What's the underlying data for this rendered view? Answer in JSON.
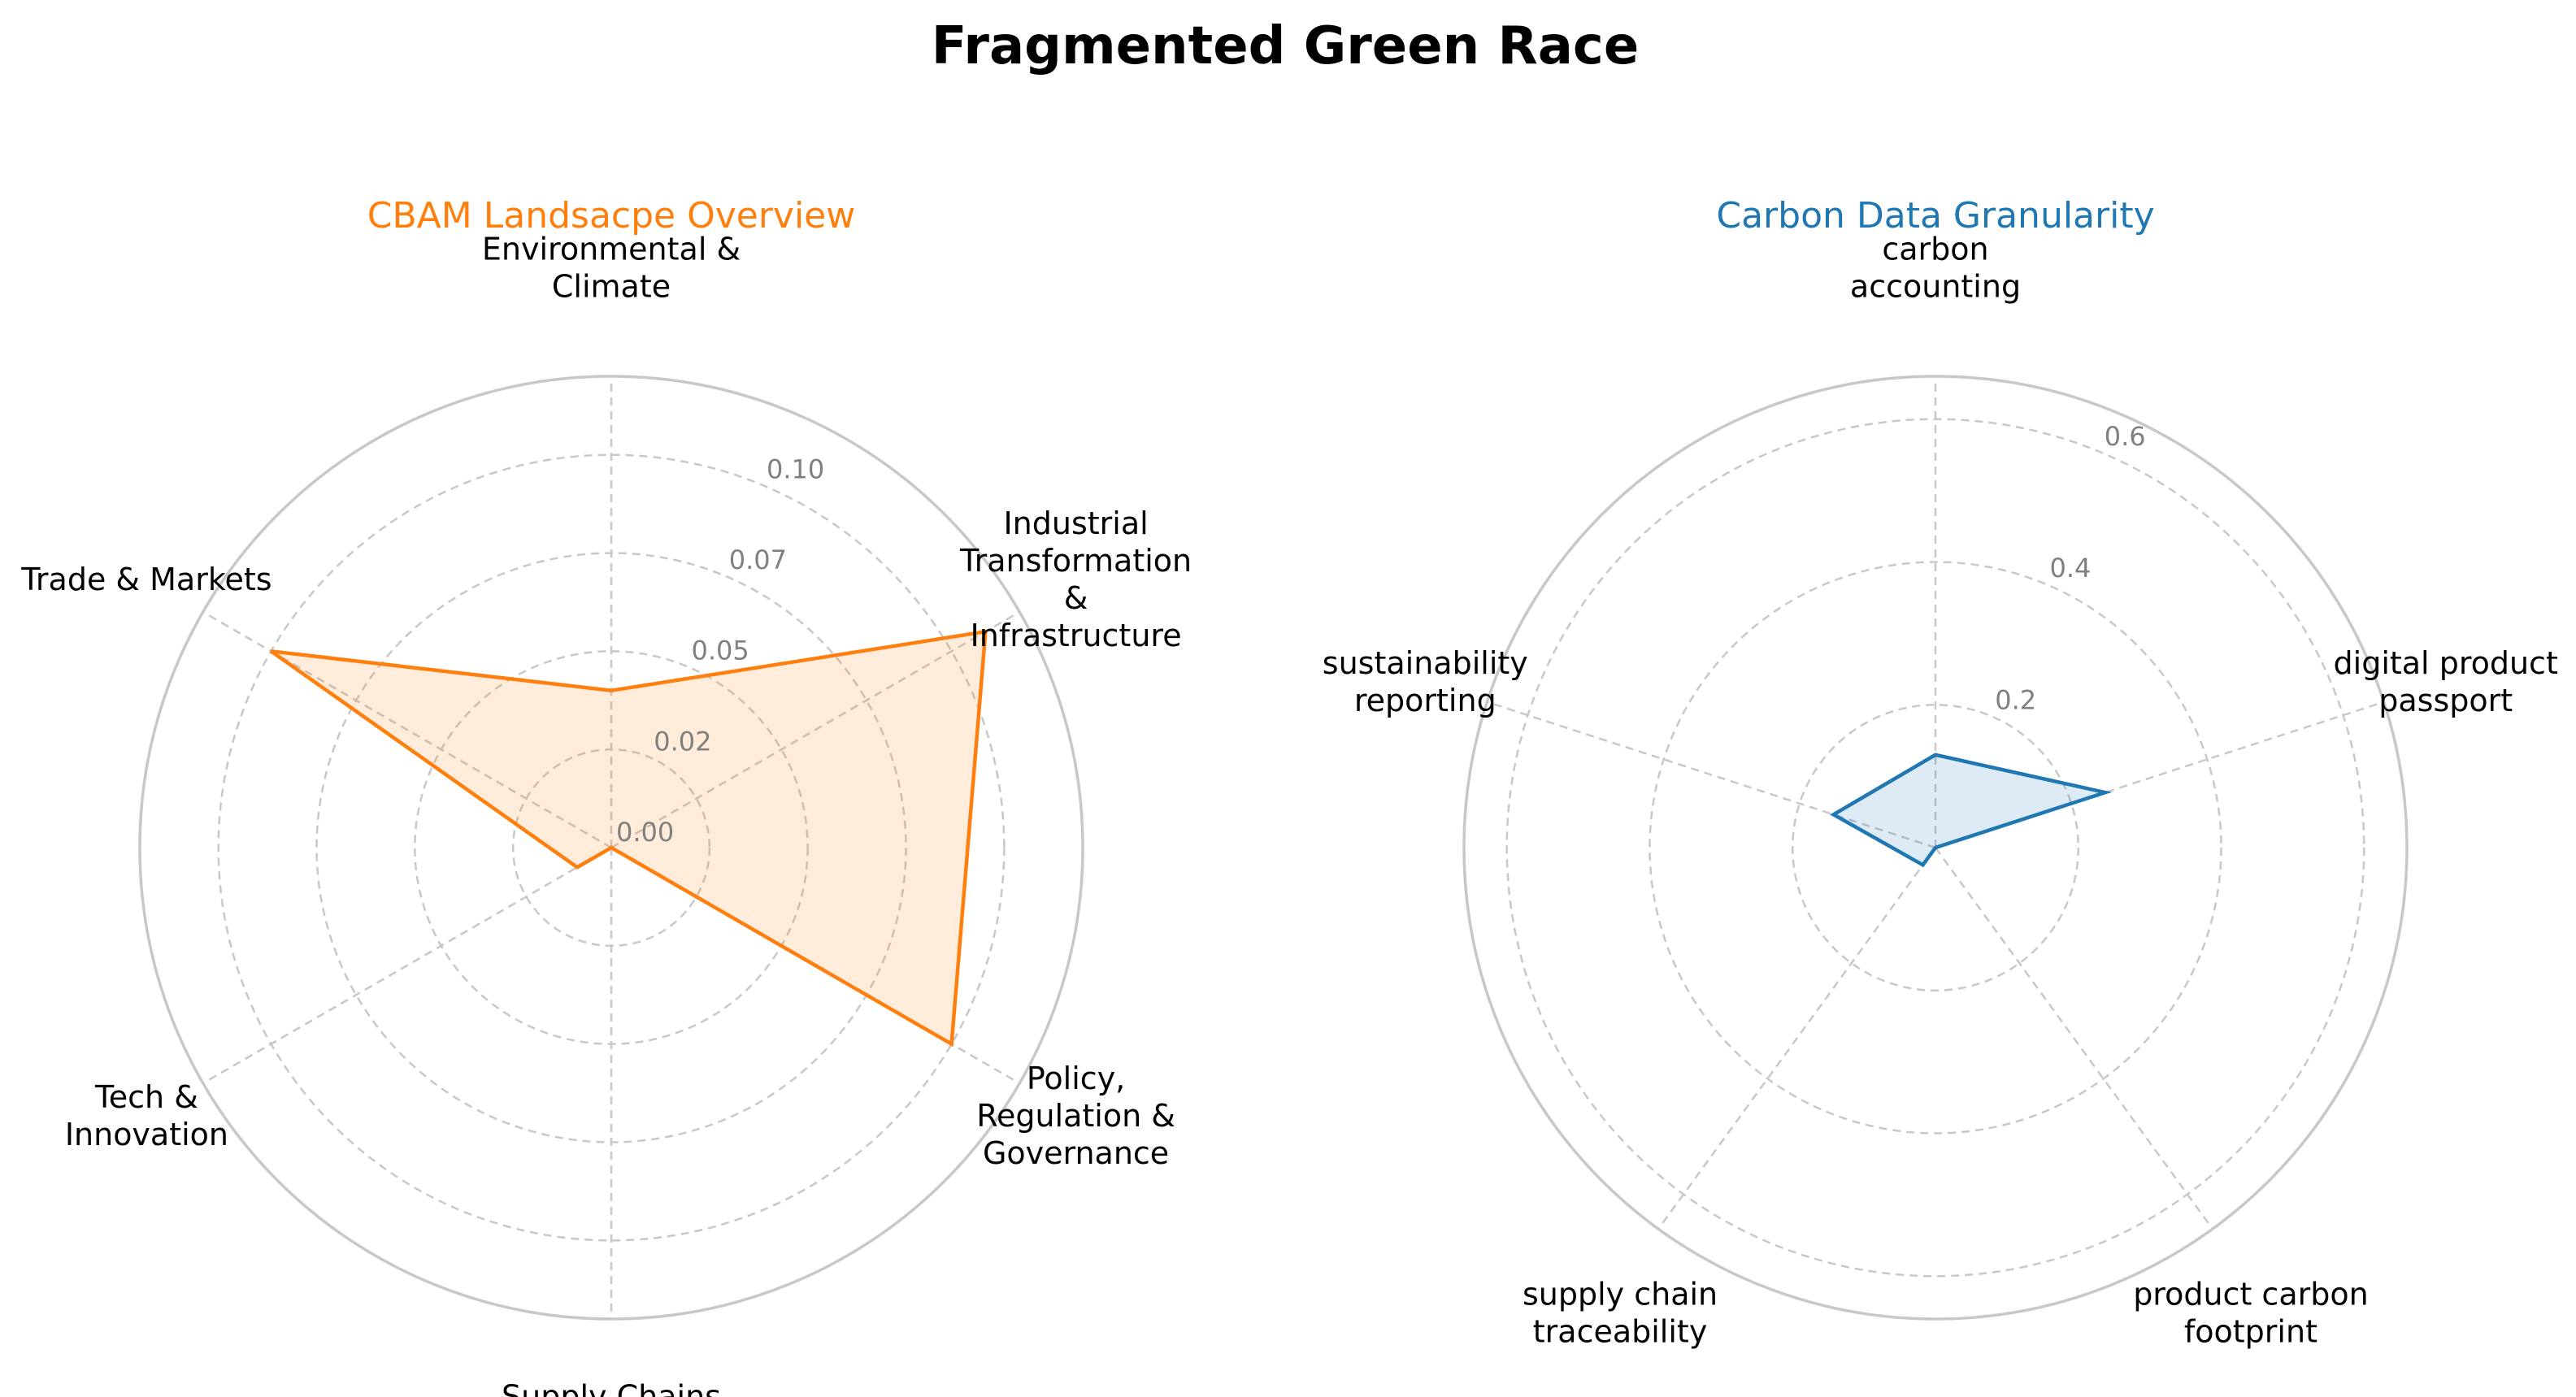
{
  "figure": {
    "title": "Fragmented Green Race"
  },
  "chart_data": [
    {
      "type": "radar",
      "title": "CBAM Landsacpe Overview",
      "title_color": "#ff7f0e",
      "line_color": "#ff7f0e",
      "fill_color": "#ff7f0e",
      "categories": [
        "Environmental & Climate",
        "Industrial Transformation & Infrastructure",
        "Policy, Regulation & Governance",
        "Supply Chains",
        "Tech & Innovation",
        "Trade & Markets"
      ],
      "category_lines": [
        [
          "Environmental &",
          "Climate"
        ],
        [
          "Industrial",
          "Transformation",
          "&",
          "Infrastructure"
        ],
        [
          "Policy,",
          "Regulation &",
          "Governance"
        ],
        [
          "Supply Chains"
        ],
        [
          "Tech &",
          "Innovation"
        ],
        [
          "Trade & Markets"
        ]
      ],
      "values": [
        0.04,
        0.11,
        0.1,
        0.0,
        0.01,
        0.1
      ],
      "rmax": 0.12,
      "ticks": [
        0.0,
        0.025,
        0.05,
        0.075,
        0.1
      ],
      "tick_labels": [
        "0.00",
        "0.02",
        "0.05",
        "0.07",
        "0.10"
      ],
      "grid": true
    },
    {
      "type": "radar",
      "title": "Carbon Data Granularity",
      "title_color": "#1f77b4",
      "line_color": "#1f77b4",
      "fill_color": "#1f77b4",
      "categories": [
        "carbon accounting",
        "digital product passport",
        "product carbon footprint",
        "supply chain traceability",
        "sustainability reporting"
      ],
      "category_lines": [
        [
          "carbon",
          "accounting"
        ],
        [
          "digital product",
          "passport"
        ],
        [
          "product carbon",
          "footprint"
        ],
        [
          "supply chain",
          "traceability"
        ],
        [
          "sustainability",
          "reporting"
        ]
      ],
      "values": [
        0.13,
        0.25,
        0.0,
        0.03,
        0.15
      ],
      "rmax": 0.66,
      "ticks": [
        0.2,
        0.4,
        0.6
      ],
      "tick_labels": [
        "0.2",
        "0.4",
        "0.6"
      ],
      "grid": true
    }
  ]
}
